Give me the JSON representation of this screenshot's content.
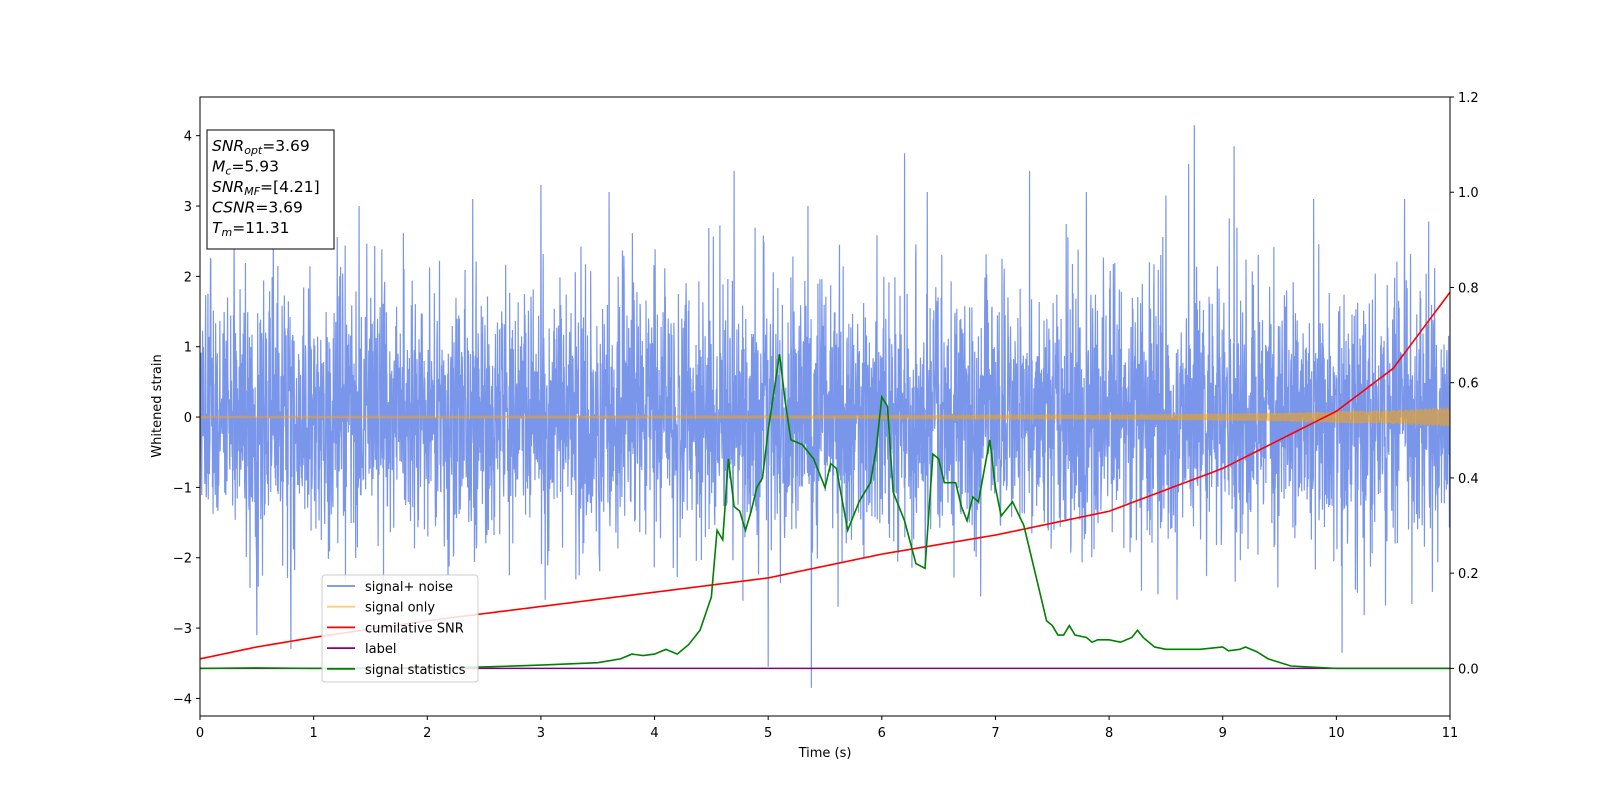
{
  "chart_data": {
    "type": "line",
    "xlabel": "Time (s)",
    "ylabel": "Whitened strain",
    "xlim": [
      0,
      11
    ],
    "ylim_left": [
      -4.25,
      4.55
    ],
    "ylim_right": [
      -0.1,
      1.2
    ],
    "x_ticks": [
      0,
      1,
      2,
      3,
      4,
      5,
      6,
      7,
      8,
      9,
      10,
      11
    ],
    "y_left_ticks": [
      -4,
      -3,
      -2,
      -1,
      0,
      1,
      2,
      3,
      4
    ],
    "y_right_ticks": [
      0.0,
      0.2,
      0.4,
      0.6,
      0.8,
      1.0,
      1.2
    ],
    "x_tick_labels": [
      "0",
      "1",
      "2",
      "3",
      "4",
      "5",
      "6",
      "7",
      "8",
      "9",
      "10",
      "11"
    ],
    "y_left_tick_labels": [
      "−4",
      "−3",
      "−2",
      "−1",
      "0",
      "1",
      "2",
      "3",
      "4"
    ],
    "y_right_tick_labels": [
      "0.0",
      "0.2",
      "0.4",
      "0.6",
      "0.8",
      "1.0",
      "1.2"
    ],
    "legend_position": "lower-left",
    "info_box": {
      "lines": [
        {
          "base": "SNR",
          "sub": "opt",
          "value": "=3.69"
        },
        {
          "base": "M",
          "sub": "c",
          "value": "=5.93"
        },
        {
          "base": "SNR",
          "sub": "MF",
          "value": "=[4.21]"
        },
        {
          "base": "CSNR",
          "sub": "",
          "value": "=3.69"
        },
        {
          "base": "T",
          "sub": "m",
          "value": "=11.31"
        }
      ]
    },
    "series": [
      {
        "name": "signal+ noise",
        "axis": "left",
        "color": "#4169E1",
        "kind": "noise",
        "sigma": 0.93,
        "spike_max": [
          [
            0.3,
            2.6
          ],
          [
            0.5,
            -3.1
          ],
          [
            0.8,
            -3.3
          ],
          [
            1.4,
            3.0
          ],
          [
            2.4,
            3.1
          ],
          [
            3.0,
            3.3
          ],
          [
            3.6,
            3.2
          ],
          [
            4.7,
            3.5
          ],
          [
            5.0,
            -3.55
          ],
          [
            5.38,
            -3.85
          ],
          [
            5.35,
            3.0
          ],
          [
            6.2,
            3.75
          ],
          [
            6.4,
            3.2
          ],
          [
            7.3,
            3.5
          ],
          [
            7.8,
            3.2
          ],
          [
            8.5,
            3.15
          ],
          [
            8.7,
            3.6
          ],
          [
            8.75,
            4.15
          ],
          [
            9.1,
            3.85
          ],
          [
            9.8,
            3.1
          ],
          [
            10.05,
            -3.35
          ],
          [
            10.6,
            3.1
          ]
        ]
      },
      {
        "name": "signal only",
        "axis": "left",
        "color": "#FFA500",
        "kind": "chirp",
        "envelope": [
          [
            0,
            0.01
          ],
          [
            5,
            0.015
          ],
          [
            8,
            0.03
          ],
          [
            9.5,
            0.06
          ],
          [
            10.5,
            0.1
          ],
          [
            11,
            0.14
          ]
        ]
      },
      {
        "name": "cumilative SNR",
        "axis": "right",
        "color": "#FF0000",
        "kind": "line",
        "points": [
          [
            0,
            0.02
          ],
          [
            0.5,
            0.045
          ],
          [
            1,
            0.065
          ],
          [
            2,
            0.1
          ],
          [
            3,
            0.13
          ],
          [
            4,
            0.16
          ],
          [
            5,
            0.19
          ],
          [
            6,
            0.24
          ],
          [
            7,
            0.28
          ],
          [
            8,
            0.33
          ],
          [
            9,
            0.42
          ],
          [
            10,
            0.54
          ],
          [
            10.5,
            0.63
          ],
          [
            11,
            0.79
          ]
        ]
      },
      {
        "name": "label",
        "axis": "right",
        "color": "#800080",
        "kind": "line",
        "points": [
          [
            0,
            0.0
          ],
          [
            11,
            0.0
          ]
        ]
      },
      {
        "name": "signal statistics",
        "axis": "right",
        "color": "#008000",
        "kind": "line",
        "points": [
          [
            0,
            0.0
          ],
          [
            0.5,
            0.001
          ],
          [
            1,
            0.0
          ],
          [
            2,
            0.001
          ],
          [
            2.5,
            0.003
          ],
          [
            3,
            0.007
          ],
          [
            3.5,
            0.012
          ],
          [
            3.7,
            0.02
          ],
          [
            3.8,
            0.03
          ],
          [
            3.9,
            0.027
          ],
          [
            4.0,
            0.03
          ],
          [
            4.1,
            0.04
          ],
          [
            4.2,
            0.03
          ],
          [
            4.3,
            0.05
          ],
          [
            4.4,
            0.08
          ],
          [
            4.5,
            0.15
          ],
          [
            4.55,
            0.29
          ],
          [
            4.6,
            0.27
          ],
          [
            4.65,
            0.44
          ],
          [
            4.7,
            0.34
          ],
          [
            4.75,
            0.33
          ],
          [
            4.8,
            0.29
          ],
          [
            4.85,
            0.33
          ],
          [
            4.9,
            0.38
          ],
          [
            4.95,
            0.4
          ],
          [
            5.0,
            0.5
          ],
          [
            5.05,
            0.58
          ],
          [
            5.1,
            0.66
          ],
          [
            5.15,
            0.56
          ],
          [
            5.2,
            0.48
          ],
          [
            5.3,
            0.47
          ],
          [
            5.4,
            0.44
          ],
          [
            5.5,
            0.38
          ],
          [
            5.55,
            0.43
          ],
          [
            5.6,
            0.42
          ],
          [
            5.7,
            0.29
          ],
          [
            5.8,
            0.35
          ],
          [
            5.9,
            0.39
          ],
          [
            5.95,
            0.46
          ],
          [
            6.0,
            0.57
          ],
          [
            6.05,
            0.55
          ],
          [
            6.1,
            0.37
          ],
          [
            6.2,
            0.31
          ],
          [
            6.3,
            0.22
          ],
          [
            6.38,
            0.21
          ],
          [
            6.45,
            0.45
          ],
          [
            6.5,
            0.44
          ],
          [
            6.55,
            0.39
          ],
          [
            6.65,
            0.39
          ],
          [
            6.7,
            0.34
          ],
          [
            6.75,
            0.31
          ],
          [
            6.8,
            0.36
          ],
          [
            6.85,
            0.35
          ],
          [
            6.95,
            0.48
          ],
          [
            7.0,
            0.38
          ],
          [
            7.05,
            0.32
          ],
          [
            7.15,
            0.35
          ],
          [
            7.25,
            0.3
          ],
          [
            7.35,
            0.2
          ],
          [
            7.45,
            0.1
          ],
          [
            7.5,
            0.09
          ],
          [
            7.55,
            0.07
          ],
          [
            7.6,
            0.07
          ],
          [
            7.65,
            0.09
          ],
          [
            7.7,
            0.07
          ],
          [
            7.8,
            0.065
          ],
          [
            7.85,
            0.055
          ],
          [
            7.9,
            0.06
          ],
          [
            8.0,
            0.06
          ],
          [
            8.1,
            0.055
          ],
          [
            8.2,
            0.065
          ],
          [
            8.25,
            0.08
          ],
          [
            8.3,
            0.065
          ],
          [
            8.4,
            0.045
          ],
          [
            8.5,
            0.04
          ],
          [
            8.6,
            0.04
          ],
          [
            8.7,
            0.04
          ],
          [
            8.8,
            0.04
          ],
          [
            9.0,
            0.045
          ],
          [
            9.05,
            0.037
          ],
          [
            9.15,
            0.04
          ],
          [
            9.2,
            0.045
          ],
          [
            9.3,
            0.035
          ],
          [
            9.4,
            0.02
          ],
          [
            9.6,
            0.005
          ],
          [
            10,
            0.0
          ],
          [
            11,
            0.0
          ]
        ]
      }
    ]
  }
}
